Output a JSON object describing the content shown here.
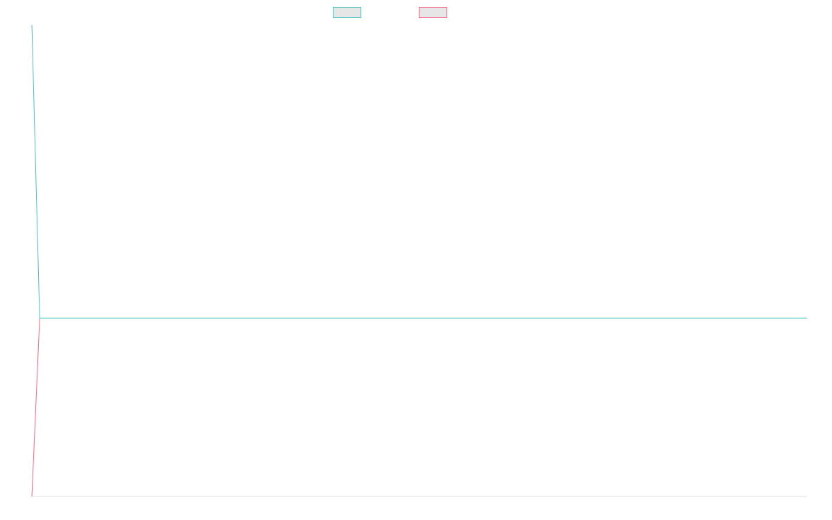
{
  "chart_data": {
    "type": "line",
    "x": [
      0,
      1,
      100
    ],
    "xlim": [
      0,
      100
    ],
    "ylim": [
      0,
      1
    ],
    "series": [
      {
        "color": "#4bc0c0",
        "values": [
          1,
          0.378,
          0.378
        ]
      },
      {
        "color": "#ff6384",
        "values": [
          0,
          0.378,
          0.378
        ]
      }
    ]
  }
}
